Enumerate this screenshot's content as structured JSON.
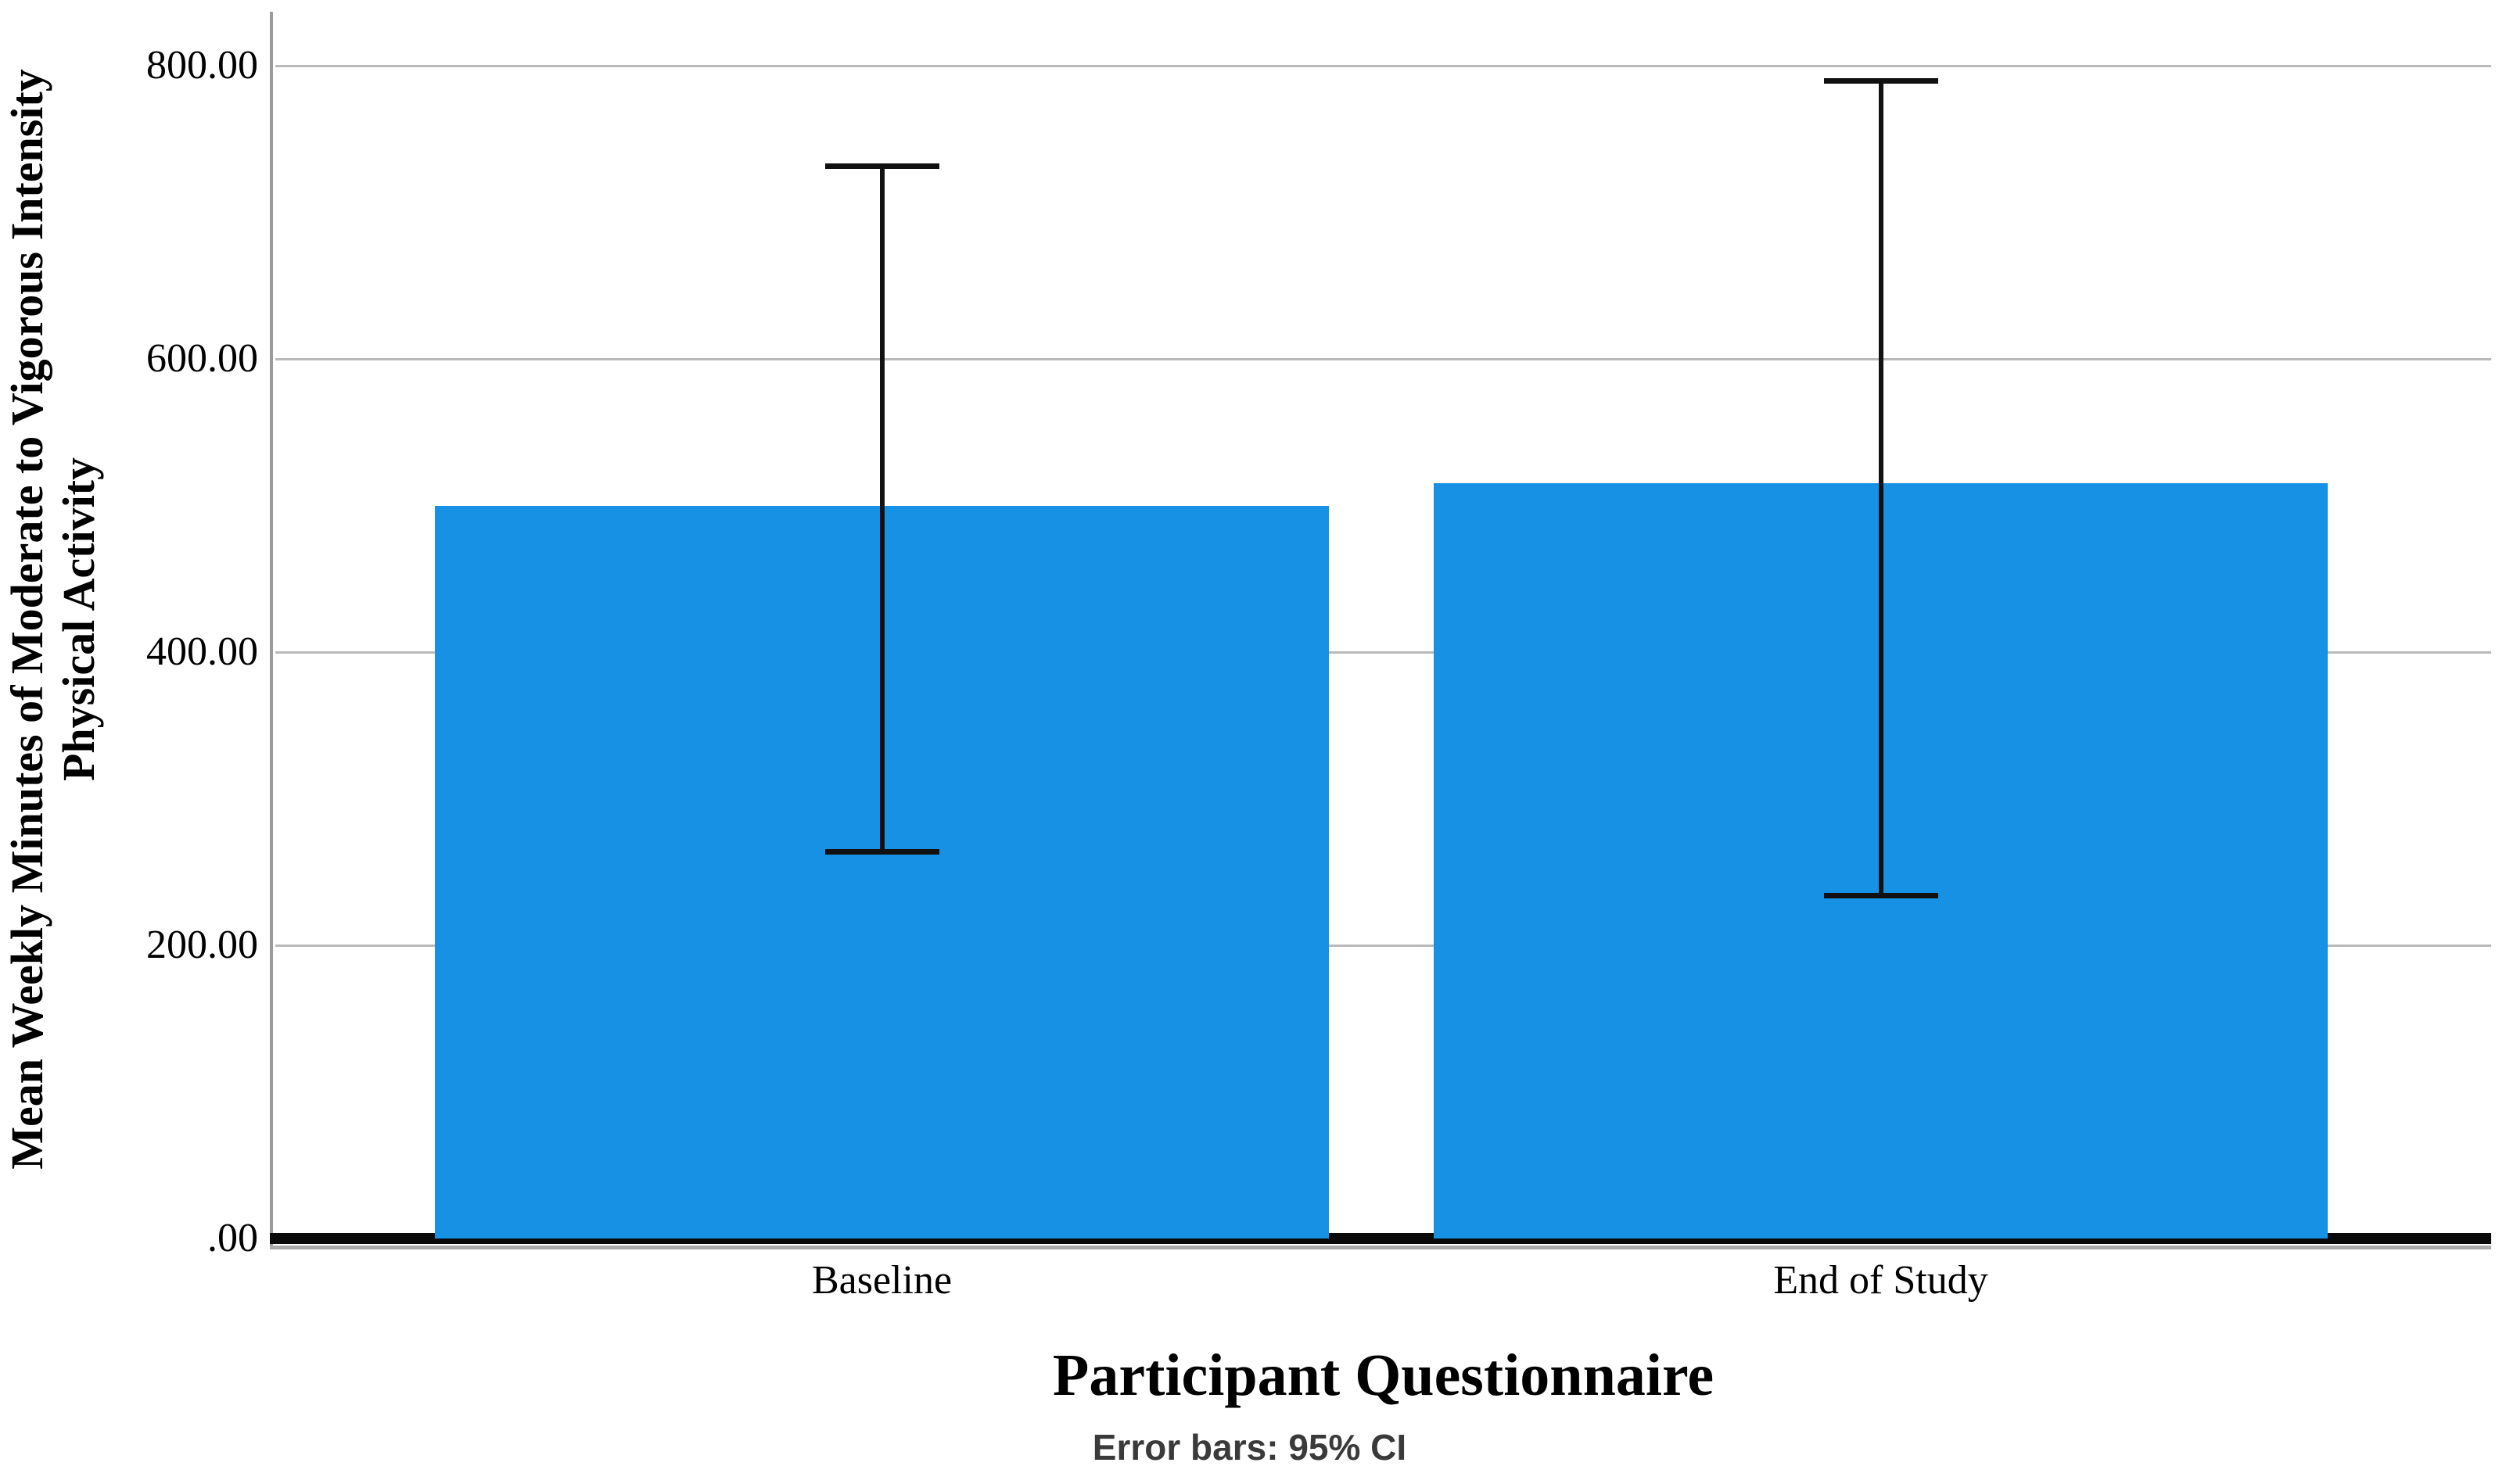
{
  "chart_data": {
    "type": "bar",
    "title": "",
    "xlabel": "Participant Questionnaire",
    "ylabel": "Mean Weekly Minutes of Moderate to Vigorous Intensity Physical Activity",
    "ylabel_lines": [
      "Mean Weekly Minutes of Moderate to Vigorous Intensity",
      "Physical Activity"
    ],
    "footnote": "Error bars: 95% CI",
    "categories": [
      "Baseline",
      "End of Study"
    ],
    "values": [
      500,
      515
    ],
    "error_bars": {
      "kind": "95% CI",
      "lower": [
        264,
        234
      ],
      "upper": [
        732,
        790
      ]
    },
    "yticks": [
      0,
      200,
      400,
      600,
      800
    ],
    "ytick_labels": [
      ".00",
      "200.00",
      "400.00",
      "600.00",
      "800.00"
    ],
    "ylim": [
      0,
      845
    ],
    "bar_color": "#1791E4",
    "grid": "horizontal",
    "legend": "none"
  },
  "figure": {
    "background": "#ffffff",
    "gridline_color": "#b9b9b9",
    "axis_color": "#9b9b9b",
    "error_bar_color": "#111111"
  }
}
